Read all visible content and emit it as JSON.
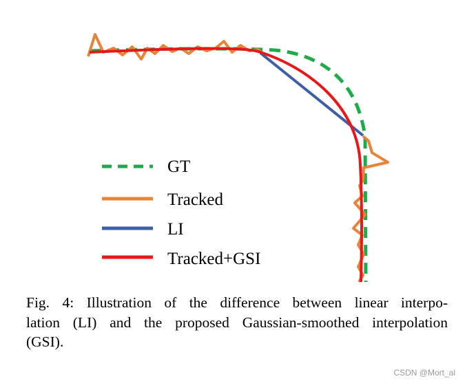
{
  "figure": {
    "colors": {
      "gt": "#1fab4a",
      "tracked": "#e8833a",
      "li": "#3f5ea8",
      "gsi": "#e81818"
    },
    "legend": [
      {
        "key": "gt",
        "label": "GT"
      },
      {
        "key": "tracked",
        "label": "Tracked"
      },
      {
        "key": "li",
        "label": "LI"
      },
      {
        "key": "gsi",
        "label": "Tracked+GSI"
      }
    ]
  },
  "caption": {
    "line1": "Fig. 4: Illustration of the difference between linear interpo-",
    "line2": "lation (LI) and the proposed Gaussian-smoothed interpolation",
    "line3": "(GSI)."
  },
  "watermark": "CSDN @Mort_al"
}
